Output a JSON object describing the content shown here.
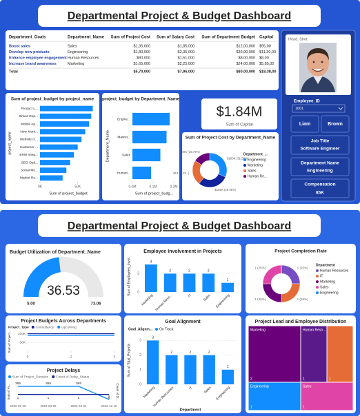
{
  "top": {
    "title": "Departmental Project & Budget Dashboard",
    "table": {
      "columns": [
        "Department_Goals",
        "Department_Name",
        "Sum of Project Cost",
        "Sum of Salary Cost",
        "Sum of Department Budget",
        "Capital"
      ],
      "rows": [
        [
          "Boost sales",
          "Sales",
          "$1,35,000",
          "$1,85,000",
          "$12,00,000",
          "$95,00"
        ],
        [
          "Develop new products",
          "Engineering",
          "$1,80,000",
          "$2,35,000",
          "$36,00,000",
          "$11,30,00"
        ],
        [
          "Enhance employee engagement",
          "Human Resources",
          "$90,000",
          "$1,51,000",
          "$8,00,000",
          "$8,00"
        ],
        [
          "Increase brand awareness",
          "Marketing",
          "$1,65,000",
          "$2,25,000",
          "$24,00,000",
          "$5,85,00"
        ]
      ],
      "total": [
        "Total",
        null,
        "$5,70,000",
        "$7,96,000",
        "$80,00,000",
        "$18,38,00"
      ]
    },
    "capital_card": {
      "value": "$1.84M",
      "label": "Sum of Capital"
    },
    "employee": {
      "photo_label": "Head_Shot",
      "id_label": "Employee_ID",
      "id": "1001",
      "first_name": "Liam",
      "last_name": "Brown",
      "job_title_label": "Job Title",
      "job_title": "Software Engineer",
      "department_label": "Department Name",
      "department": "Engineering",
      "compensation_label": "Compensation",
      "compensation": "85K"
    }
  },
  "bottom": {
    "title": "Departmental Project & Budget Dashboard"
  },
  "chart_data": [
    {
      "type": "hbar",
      "title": "Sum of project_budget by project_name",
      "x_label": "Sum of project_budget",
      "y_label": "project_name",
      "categories": [
        "Product L...",
        "Brand Rep...",
        "Mobile Ap...",
        "New Mark...",
        "Website O...",
        "Customer ...",
        "ERM Integ...",
        "SEO Opti...",
        "Social Me...",
        "Market Re..."
      ],
      "values": [
        70000,
        68000,
        65000,
        60000,
        55000,
        50000,
        45000,
        40000,
        35000,
        30000
      ],
      "color": "#118DFF",
      "xlim": [
        0,
        75000
      ],
      "xticks": [
        {
          "value": 0,
          "label": "0K"
        },
        {
          "value": 50000,
          "label": "50K"
        }
      ]
    },
    {
      "type": "hbar",
      "title": "project_budget by Department_Name",
      "x_label": "Sum of project_budg...",
      "y_label": "Department_Name",
      "categories": [
        "Engine...",
        "Market...",
        "Sales",
        "Human..."
      ],
      "values": [
        180000,
        165000,
        135000,
        90000
      ],
      "color": "#118DFF",
      "xlim": [
        0,
        210000
      ],
      "xticks": [
        {
          "value": 0,
          "label": "0.0M"
        },
        {
          "value": 100000,
          "label": "0.1M"
        },
        {
          "value": 200000,
          "label": "0.2M"
        }
      ]
    },
    {
      "type": "donut",
      "title": "Sum of Project Cost by Department_Name",
      "legend_title": "Department_...",
      "categories": [
        "Engineering",
        "Marketing",
        "Sales",
        "Human Re..."
      ],
      "values": [
        180000,
        165000,
        135000,
        90000
      ],
      "value_labels": [
        "$180K (31.58%)",
        "$165K (28.95%)",
        "$13... (23...)",
        "$90K (15.79%)"
      ],
      "colors": [
        "#118DFF",
        "#12239E",
        "#E66C37",
        "#6B007B"
      ]
    },
    {
      "type": "gauge",
      "title": "Budget Utilization of Department_Name",
      "value": 36.53,
      "color": "#118DFF",
      "ylim": [
        5,
        73.06
      ],
      "yticks": [
        {
          "value": 5,
          "label": "5.00"
        },
        73.06
      ]
    },
    {
      "type": "bar",
      "title": "Employee Involvement in Projects",
      "y_label": "Sum of Employees_Invol...",
      "categories": [
        "Marketing",
        "Human Reso...",
        "IT",
        "Sales",
        "Engineering"
      ],
      "values": [
        3,
        2,
        2,
        2,
        1
      ],
      "color": "#118DFF",
      "ylim": [
        0,
        3.6
      ],
      "yticks": [
        0,
        2
      ],
      "data_labels": true
    },
    {
      "type": "donut",
      "title": "Project Completion Rate",
      "legend_title": "Department",
      "categories": [
        "Human Resources",
        "IT",
        "Marketing",
        "Sales",
        "Engineering"
      ],
      "values": [
        1,
        1,
        1,
        1,
        0
      ],
      "value_labels": [
        "1 (25%)",
        "1 (25%)",
        "1 (25%)",
        "1 (25%)",
        null
      ],
      "colors": [
        "#744EC2",
        "#E66C37",
        "#6B007B",
        "#E044A7",
        "#118DFF"
      ]
    },
    {
      "type": "line",
      "title": "Project Budgets Across Departments",
      "legend_title": "Project_Type",
      "y_label": "Sum of Project...",
      "x": [
        0,
        1,
        2
      ],
      "xlim": [
        0,
        2
      ],
      "xticks": [
        0,
        1,
        2
      ],
      "ylim": [
        0,
        110000
      ],
      "yticks": [
        {
          "value": 50000,
          "label": "50K"
        },
        {
          "value": 100000,
          "label": "100K"
        }
      ],
      "series": [
        {
          "name": "Consultancy",
          "color": "#12239E",
          "values": [
            100000,
            100000,
            100000
          ]
        },
        {
          "name": "Upcoming",
          "color": "#118DFF",
          "values": [
            90000,
            90000,
            90000
          ]
        }
      ]
    },
    {
      "type": "line",
      "title": "Project Delays",
      "y_label": "Sum of Pr...",
      "y2_label": "Count of D...",
      "categories": [
        "2022-01-26",
        "2022-03-25",
        "2022-04-01",
        "2022-12-15"
      ],
      "ylim": [
        0,
        420
      ],
      "y2lim": [
        0,
        3
      ],
      "data_labels": true,
      "series": [
        {
          "name": "Sum of Project_Duration",
          "color": "#118DFF",
          "values": [
            365,
            365,
            365,
            0
          ]
        },
        {
          "name": "Count of Delay_Status",
          "color": "#12239E",
          "axis": "y2",
          "values": [
            1,
            1,
            1,
            1
          ]
        }
      ]
    },
    {
      "type": "bar",
      "title": "Goal Alignment",
      "legend_title": "Goal_Alignm...",
      "x_label": "Department",
      "y_label": "Sum of Total_Projects",
      "categories": [
        "Marketing",
        "Human Resources",
        "IT",
        "Sales",
        "Engineering"
      ],
      "series": [
        {
          "name": "On Track",
          "color": "#118DFF",
          "values": [
            3,
            2,
            2,
            2,
            1
          ]
        }
      ],
      "ylim": [
        0,
        3.3
      ],
      "yticks": [
        0,
        1,
        2,
        3
      ],
      "data_labels": true
    },
    {
      "type": "treemap",
      "title": "Project Lead and Employee Distribution",
      "categories": [
        "Marketing",
        "Human Reso...",
        null,
        "Engineering",
        "Sales"
      ],
      "values": [
        2,
        1,
        1,
        1,
        1
      ],
      "colors": [
        "#6B007B",
        "#5B1A8A",
        "#E66C37",
        "#118DFF",
        "#E044A7"
      ]
    }
  ]
}
